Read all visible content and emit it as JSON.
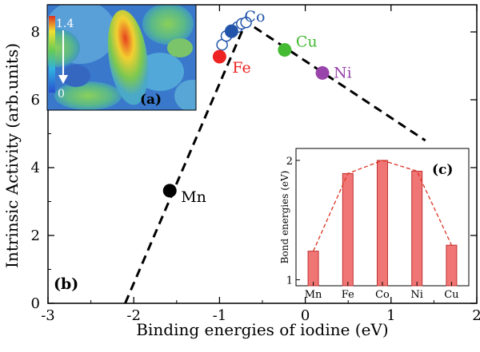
{
  "chart_data": [
    {
      "type": "scatter",
      "xlabel": "Binding energies of iodine (eV)",
      "ylabel": "Intrinsic Activity (arb.units)",
      "xlim": [
        -3,
        2
      ],
      "ylim": [
        0,
        8.8
      ],
      "xticks": [
        "-3",
        "-2",
        "-1",
        "0",
        "1",
        "2"
      ],
      "yticks": [
        "0",
        "2",
        "4",
        "6",
        "8"
      ],
      "panel_label": "(b)",
      "points": [
        {
          "label": "Mn",
          "x": -1.58,
          "y": 3.32,
          "color": "#000000"
        },
        {
          "label": "Fe",
          "x": -1.0,
          "y": 7.27,
          "color": "#ee2222"
        },
        {
          "label": "Co",
          "x": -0.86,
          "y": 8.02,
          "color": "#2255aa"
        },
        {
          "label": "Cu",
          "x": -0.24,
          "y": 7.47,
          "color": "#44bb33"
        },
        {
          "label": "Ni",
          "x": 0.2,
          "y": 6.79,
          "color": "#9944aa"
        }
      ],
      "co_open_markers": [
        {
          "x": -0.97,
          "y": 7.62
        },
        {
          "x": -0.92,
          "y": 7.88
        },
        {
          "x": -0.79,
          "y": 8.14
        },
        {
          "x": -0.74,
          "y": 8.24
        },
        {
          "x": -0.69,
          "y": 8.28
        }
      ],
      "volcano_line": [
        [
          -2.1,
          0
        ],
        [
          -0.69,
          8.3
        ],
        [
          1.4,
          4.8
        ]
      ],
      "inset_a": {
        "label": "(a)",
        "colorbar_max": "1.4",
        "colorbar_min": "0"
      }
    },
    {
      "type": "bar",
      "panel_label": "(c)",
      "categories": [
        "Mn",
        "Fe",
        "Co",
        "Ni",
        "Cu"
      ],
      "values": [
        1.24,
        1.89,
        2.0,
        1.91,
        1.29
      ],
      "ylabel": "Bond energies (eV)",
      "ylim": [
        0.95,
        2.1
      ],
      "yticks": [
        "1",
        "2"
      ],
      "bar_color": "#f07575",
      "line_color": "#dd3322"
    }
  ]
}
